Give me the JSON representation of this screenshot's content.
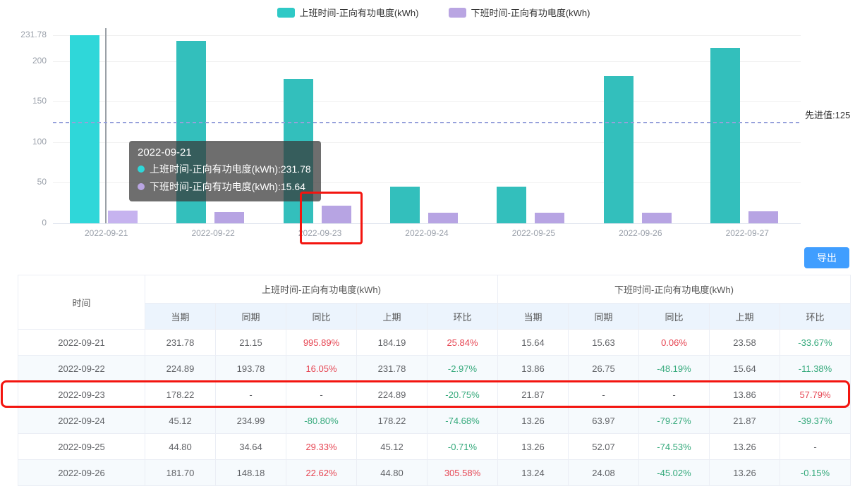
{
  "legend": {
    "items": [
      {
        "label": "上班时间-正向有功电度(kWh)",
        "color": "#2fc9c6"
      },
      {
        "label": "下班时间-正向有功电度(kWh)",
        "color": "#b9a5e2"
      }
    ]
  },
  "chart_data": {
    "type": "bar",
    "categories": [
      "2022-09-21",
      "2022-09-22",
      "2022-09-23",
      "2022-09-24",
      "2022-09-25",
      "2022-09-26",
      "2022-09-27"
    ],
    "series": [
      {
        "name": "上班时间-正向有功电度(kWh)",
        "color": "#33bfbc",
        "highlight_color": "#2fd7d9",
        "values": [
          231.78,
          224.89,
          178.22,
          45.12,
          44.8,
          181.7,
          216
        ]
      },
      {
        "name": "下班时间-正向有功电度(kWh)",
        "color": "#b7a4e3",
        "highlight_color": "#c6b3ef",
        "values": [
          15.64,
          13.86,
          21.87,
          13.26,
          13.26,
          13.24,
          15
        ]
      }
    ],
    "ylim": [
      0,
      231.78
    ],
    "y_ticks": [
      231.78,
      200,
      150,
      100,
      50,
      0
    ],
    "markline": {
      "value": 125,
      "label": "先进值:125"
    },
    "hovered_category_index": 0,
    "annotated_category": "2022-09-23",
    "grid": true,
    "legend_position": "top"
  },
  "tooltip": {
    "title": "2022-09-21",
    "lines": [
      {
        "color": "#2fd7d9",
        "text": "上班时间-正向有功电度(kWh):231.78"
      },
      {
        "color": "#b9a5e2",
        "text": "下班时间-正向有功电度(kWh):15.64"
      }
    ]
  },
  "export_button": {
    "label": "导出",
    "color": "#409eff"
  },
  "table": {
    "time_header": "时间",
    "groups": [
      "上班时间-正向有功电度(kWh)",
      "下班时间-正向有功电度(kWh)"
    ],
    "sub_headers": [
      "当期",
      "同期",
      "同比",
      "上期",
      "环比"
    ],
    "rows": [
      [
        "2022-09-21",
        "231.78",
        "21.15",
        "995.89%",
        "184.19",
        "25.84%",
        "15.64",
        "15.63",
        "0.06%",
        "23.58",
        "-33.67%"
      ],
      [
        "2022-09-22",
        "224.89",
        "193.78",
        "16.05%",
        "231.78",
        "-2.97%",
        "13.86",
        "26.75",
        "-48.19%",
        "15.64",
        "-11.38%"
      ],
      [
        "2022-09-23",
        "178.22",
        "-",
        "-",
        "224.89",
        "-20.75%",
        "21.87",
        "-",
        "-",
        "13.86",
        "57.79%"
      ],
      [
        "2022-09-24",
        "45.12",
        "234.99",
        "-80.80%",
        "178.22",
        "-74.68%",
        "13.26",
        "63.97",
        "-79.27%",
        "21.87",
        "-39.37%"
      ],
      [
        "2022-09-25",
        "44.80",
        "34.64",
        "29.33%",
        "45.12",
        "-0.71%",
        "13.26",
        "52.07",
        "-74.53%",
        "13.26",
        "-"
      ],
      [
        "2022-09-26",
        "181.70",
        "148.18",
        "22.62%",
        "44.80",
        "305.58%",
        "13.24",
        "24.08",
        "-45.02%",
        "13.26",
        "-0.15%"
      ]
    ],
    "highlighted_row": "2022-09-23",
    "colors": {
      "positive": "#e64552",
      "negative": "#34a97b",
      "annotation": "#f3150f"
    }
  }
}
